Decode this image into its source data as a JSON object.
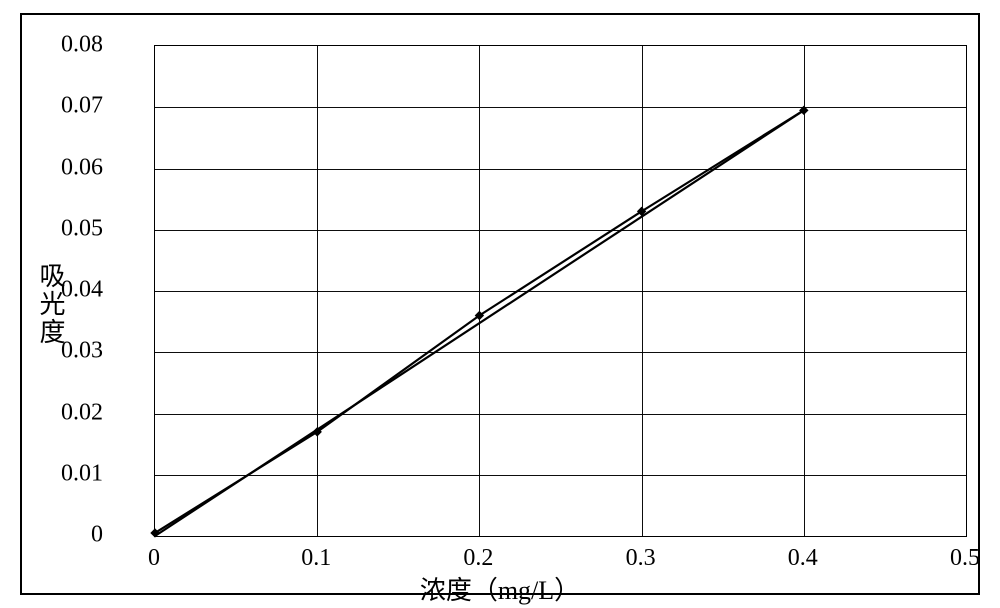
{
  "chart": {
    "type": "line",
    "outer_border_color": "#000000",
    "background_color": "#ffffff",
    "plot_border_color": "#000000",
    "grid_color": "#000000",
    "x_axis": {
      "label": "浓度（mg/L）",
      "min": 0,
      "max": 0.5,
      "ticks": [
        0,
        0.1,
        0.2,
        0.3,
        0.4,
        0.5
      ],
      "tick_labels": [
        "0",
        "0.1",
        "0.2",
        "0.3",
        "0.4",
        "0.5"
      ],
      "label_fontsize": 26,
      "tick_fontsize": 24
    },
    "y_axis": {
      "label": "吸光度",
      "min": 0,
      "max": 0.08,
      "ticks": [
        0,
        0.01,
        0.02,
        0.03,
        0.04,
        0.05,
        0.06,
        0.07,
        0.08
      ],
      "tick_labels": [
        "0",
        "0.01",
        "0.02",
        "0.03",
        "0.04",
        "0.05",
        "0.06",
        "0.07",
        "0.08"
      ],
      "label_fontsize": 26,
      "tick_fontsize": 24
    },
    "series": [
      {
        "name": "data-line",
        "x": [
          0,
          0.1,
          0.2,
          0.3,
          0.4
        ],
        "y": [
          0.0005,
          0.017,
          0.036,
          0.053,
          0.0695
        ],
        "line_color": "#000000",
        "line_width": 2.2,
        "marker": "diamond",
        "marker_size": 8,
        "marker_color": "#000000"
      },
      {
        "name": "fit-line",
        "x": [
          0,
          0.4
        ],
        "y": [
          0,
          0.0695
        ],
        "line_color": "#000000",
        "line_width": 2.2,
        "marker": "none"
      }
    ]
  }
}
